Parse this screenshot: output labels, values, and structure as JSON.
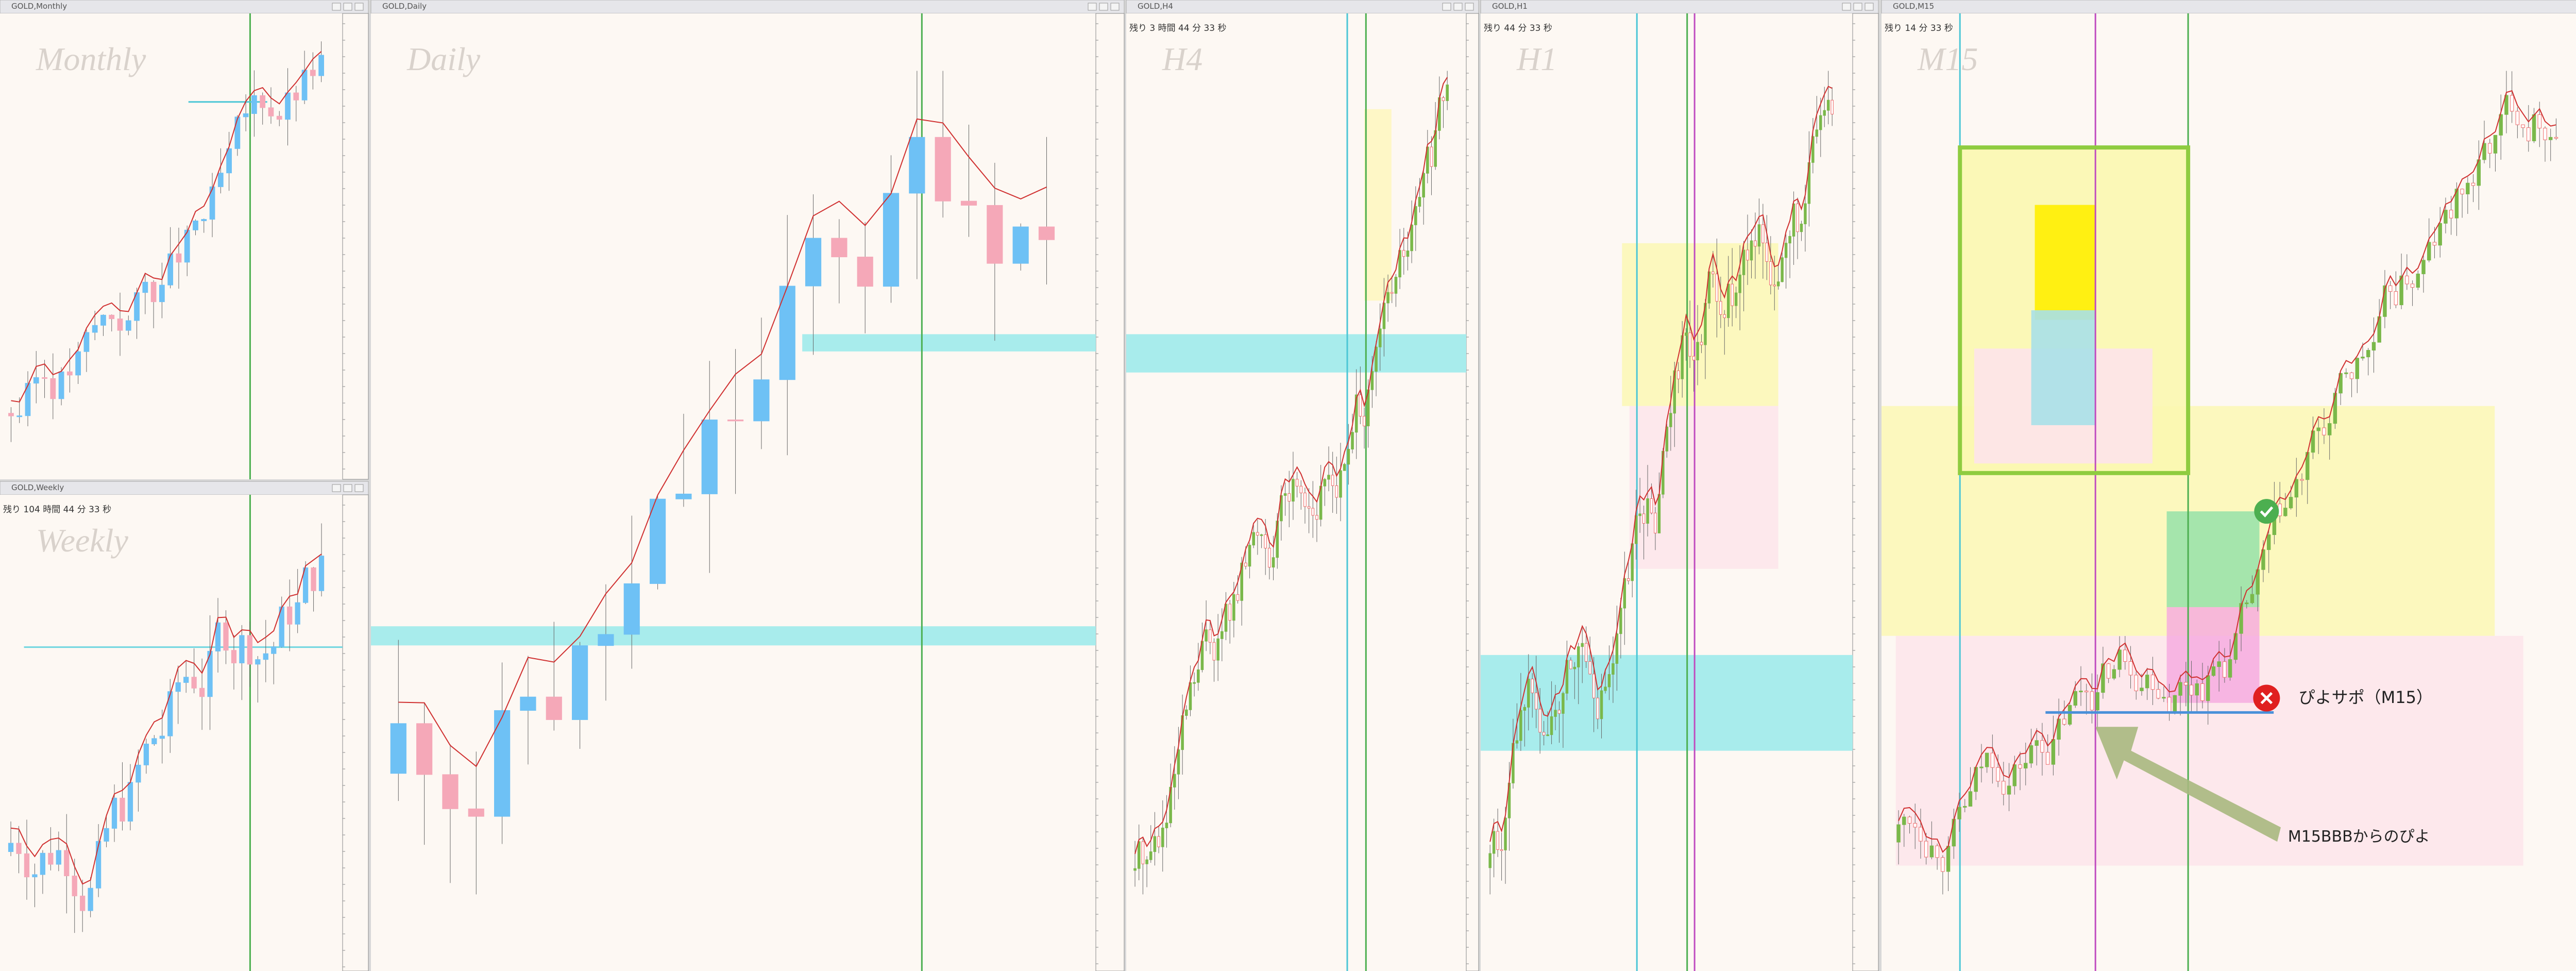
{
  "windows": [
    {
      "title": "GOLD,Monthly",
      "label": "Monthly"
    },
    {
      "title": "GOLD,Weekly",
      "label": "Weekly",
      "timer": "残り 104 時間 44 分 33 秒"
    },
    {
      "title": "GOLD,Daily",
      "label": "Daily"
    },
    {
      "title": "GOLD,H4",
      "label": "H4",
      "timer": "残り 3 時間 44 分 33 秒"
    },
    {
      "title": "GOLD,H1",
      "label": "H1",
      "timer": "残り 44 分 33 秒"
    },
    {
      "title": "GOLD,M15",
      "label": "M15",
      "timer": "残り 14 分 33 秒"
    }
  ],
  "annotations": {
    "support": "ぴよサポ（M15）",
    "arrow": "M15BBBからのぴよ"
  }
}
